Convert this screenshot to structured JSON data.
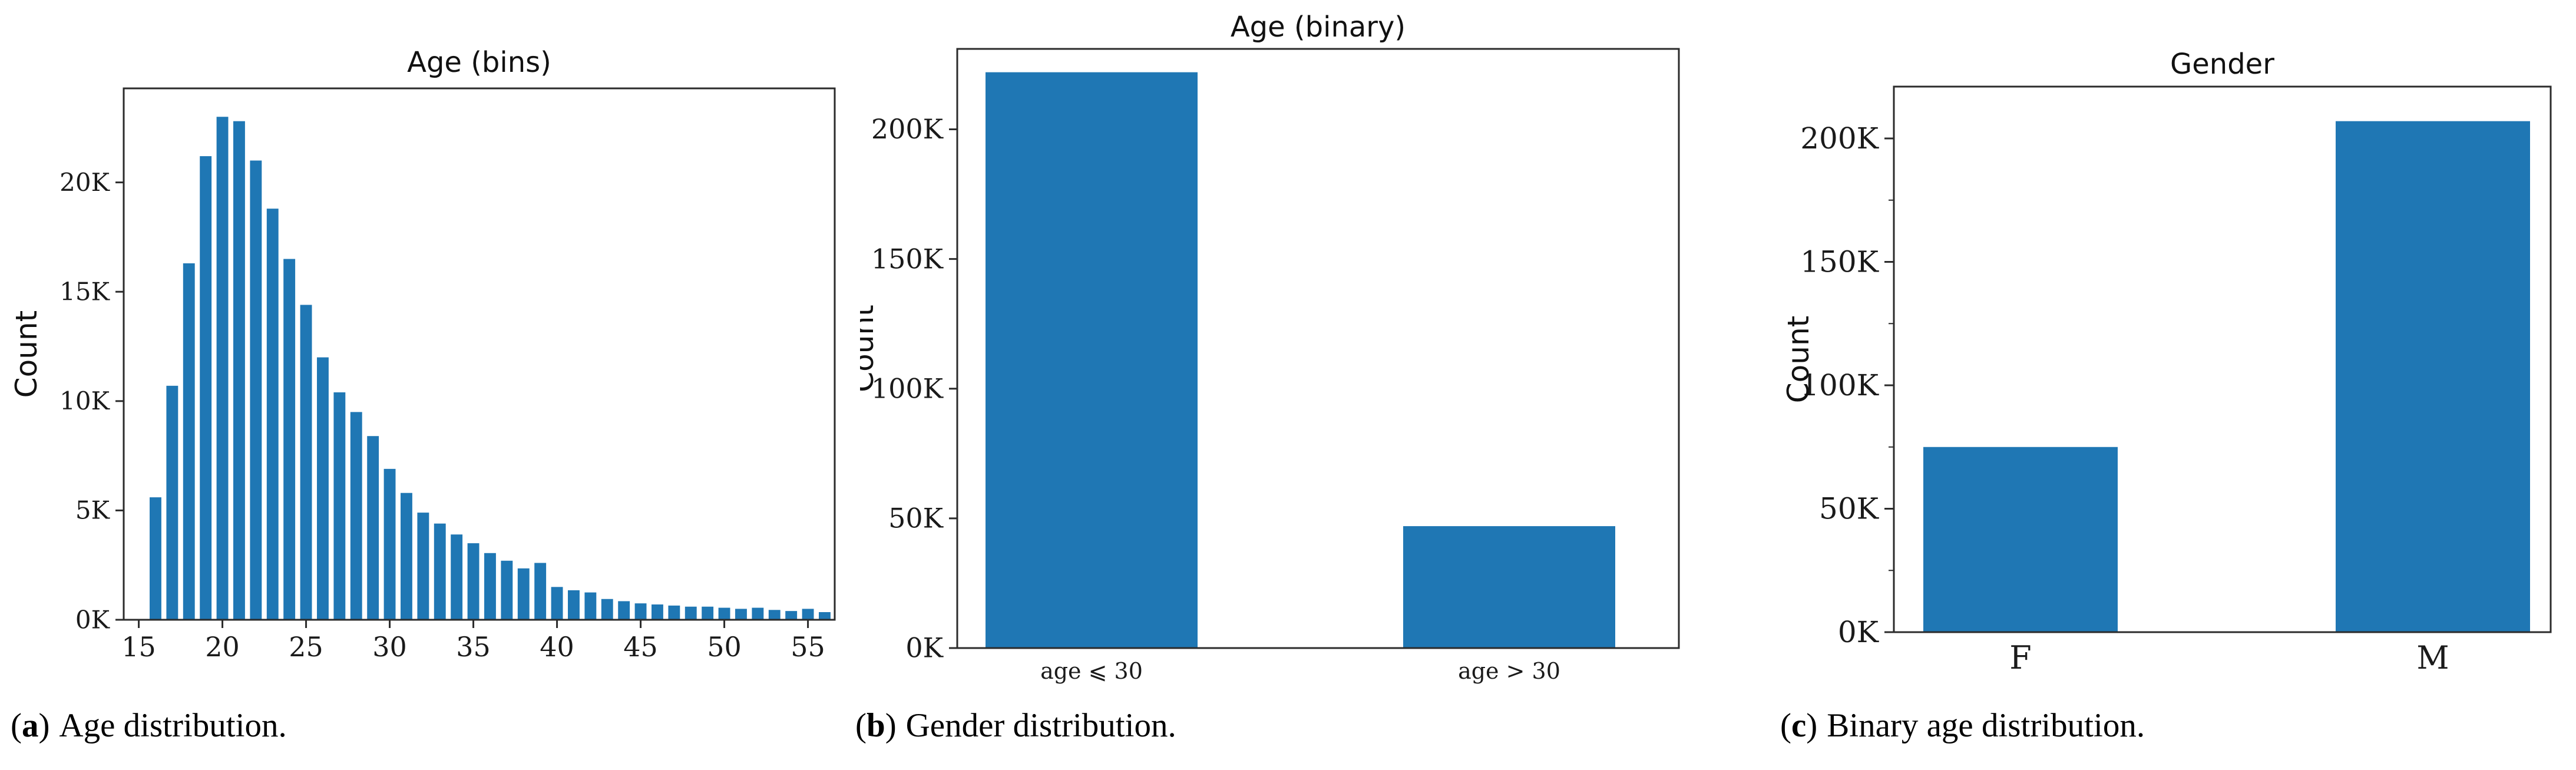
{
  "figure": {
    "background": "#ffffff",
    "bar_color": "#1f77b4",
    "axis_color": "#2b2b2b",
    "text_color": "#111111"
  },
  "captions": [
    {
      "open": "(",
      "letter": "a",
      "close": ")",
      "text": "Age distribution."
    },
    {
      "open": "(",
      "letter": "b",
      "close": ")",
      "text": "Gender distribution."
    },
    {
      "open": "(",
      "letter": "c",
      "close": ")",
      "text": "Binary age distribution."
    }
  ],
  "chart_data": [
    {
      "id": "age_bins",
      "type": "bar",
      "title": "Age (bins)",
      "xlabel": "",
      "ylabel": "Count",
      "y_unit": "thousands (K)",
      "x": [
        16,
        17,
        18,
        19,
        20,
        21,
        22,
        23,
        24,
        25,
        26,
        27,
        28,
        29,
        30,
        31,
        32,
        33,
        34,
        35,
        36,
        37,
        38,
        39,
        40,
        41,
        42,
        43,
        44,
        45,
        46,
        47,
        48,
        49,
        50,
        51,
        52,
        53,
        54,
        55,
        56
      ],
      "values": [
        5.6,
        10.7,
        16.3,
        21.2,
        23.0,
        22.8,
        21.0,
        18.8,
        16.5,
        14.4,
        12.0,
        10.4,
        9.5,
        8.4,
        6.9,
        5.8,
        4.9,
        4.4,
        3.9,
        3.5,
        3.05,
        2.7,
        2.35,
        2.6,
        1.5,
        1.35,
        1.25,
        0.95,
        0.85,
        0.75,
        0.7,
        0.65,
        0.6,
        0.6,
        0.55,
        0.5,
        0.55,
        0.45,
        0.4,
        0.5,
        0.35
      ],
      "xticks": [
        15,
        20,
        25,
        30,
        35,
        40,
        45,
        50,
        55
      ],
      "xlim": [
        14.1,
        56.6
      ],
      "yticks": [
        0,
        5,
        10,
        15,
        20
      ],
      "ytick_labels": [
        "0K",
        "5K",
        "10K",
        "15K",
        "20K"
      ],
      "ylim": [
        0,
        24.3
      ],
      "grid": false,
      "legend": null
    },
    {
      "id": "age_binary",
      "type": "bar",
      "title": "Age (binary)",
      "xlabel": "",
      "ylabel": "Count",
      "y_unit": "thousands (K)",
      "categories": [
        "age ⩽ 30",
        "age > 30"
      ],
      "values": [
        222,
        47
      ],
      "yticks": [
        0,
        50,
        100,
        150,
        200
      ],
      "ytick_labels": [
        "0K",
        "50K",
        "100K",
        "150K",
        "200K"
      ],
      "ylim": [
        0,
        231
      ],
      "grid": false,
      "legend": null
    },
    {
      "id": "gender",
      "type": "bar",
      "title": "Gender",
      "xlabel": "",
      "ylabel": "Count",
      "y_unit": "thousands (K)",
      "categories": [
        "F",
        "M"
      ],
      "values": [
        75,
        207
      ],
      "yticks": [
        0,
        50,
        100,
        150,
        200
      ],
      "ytick_labels": [
        "0K",
        "50K",
        "100K",
        "150K",
        "200K"
      ],
      "minor_ytick_step": 25,
      "ylim": [
        0,
        221
      ],
      "grid": false,
      "legend": null
    }
  ]
}
